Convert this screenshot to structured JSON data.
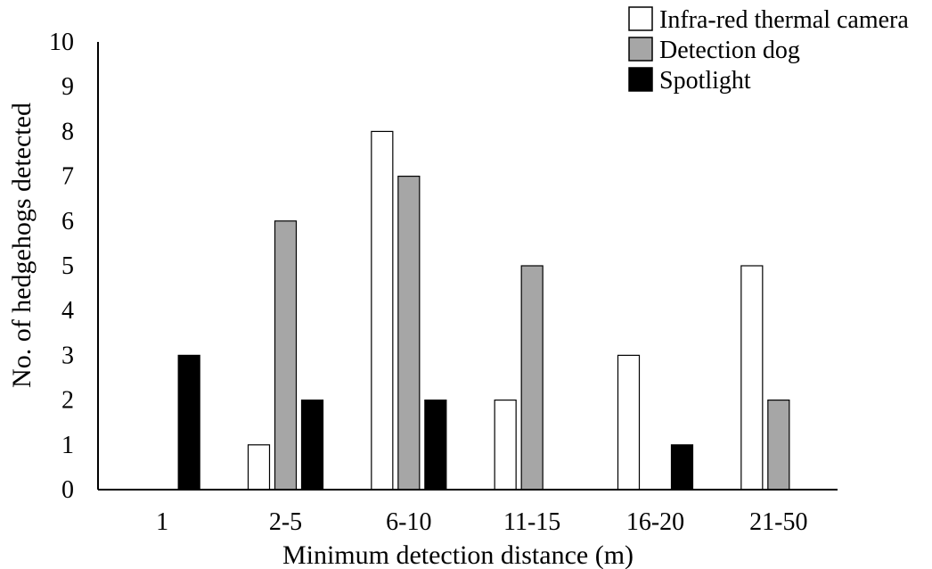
{
  "chart_data": {
    "type": "bar",
    "title": "",
    "xlabel": "Minimum detection distance (m)",
    "ylabel": "No. of hedgehogs detected",
    "categories": [
      "1",
      "2-5",
      "6-10",
      "11-15",
      "16-20",
      "21-50"
    ],
    "series": [
      {
        "name": "Infra-red thermal camera",
        "values": [
          0,
          1,
          8,
          2,
          3,
          5
        ],
        "color": "#ffffff"
      },
      {
        "name": "Detection dog",
        "values": [
          0,
          6,
          7,
          5,
          0,
          2
        ],
        "color": "#a6a6a6"
      },
      {
        "name": "Spotlight",
        "values": [
          3,
          2,
          2,
          0,
          1,
          0
        ],
        "color": "#000000"
      }
    ],
    "ylim": [
      0,
      10
    ],
    "yticks": [
      "0",
      "1",
      "2",
      "3",
      "4",
      "5",
      "6",
      "7",
      "8",
      "9",
      "10"
    ],
    "grid": false,
    "legend_position": "top-right"
  }
}
